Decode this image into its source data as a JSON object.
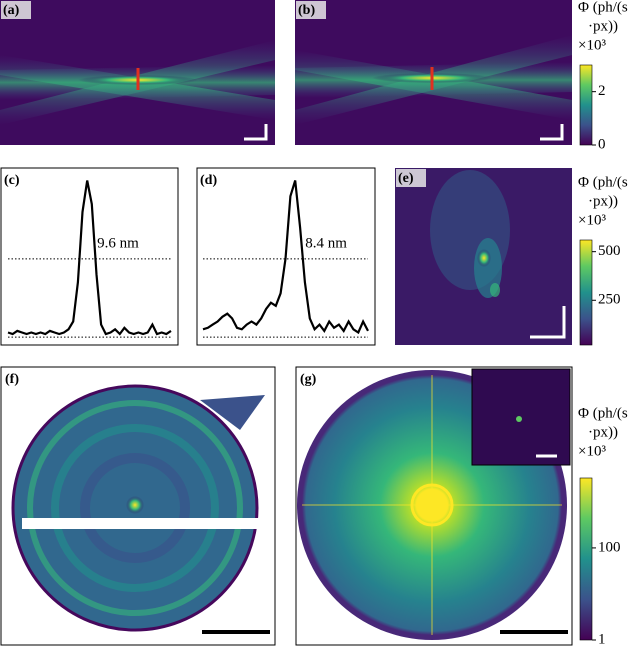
{
  "panels": [
    {
      "label": "(a)"
    },
    {
      "label": "(b)"
    },
    {
      "label": "(c)"
    },
    {
      "label": "(d)"
    },
    {
      "label": "(e)"
    },
    {
      "label": "(f)"
    },
    {
      "label": "(g)"
    }
  ],
  "colorbars": [
    {
      "title": [
        "Φ (ph/(s",
        "·px))",
        "×10³"
      ],
      "ylim": [
        0,
        3
      ],
      "yticks": [
        0,
        2
      ],
      "log": false
    },
    {
      "title": [
        "Φ (ph/(s",
        "·px))",
        "×10³"
      ],
      "ylim": [
        20,
        560
      ],
      "yticks": [
        250,
        500
      ],
      "log": false
    },
    {
      "title": [
        "Φ (ph/(s",
        "·px))",
        "×10³"
      ],
      "ylim": [
        1,
        3300
      ],
      "yticks": [
        1,
        100
      ],
      "log": true
    }
  ],
  "chart_data": [
    {
      "type": "line",
      "annotation": "9.6 nm",
      "color": "#000000",
      "ylim": [
        -0.05,
        1.08
      ],
      "values": [
        0.03,
        0.02,
        0.04,
        0.03,
        0.02,
        0.03,
        0.02,
        0.03,
        0.02,
        0.04,
        0.03,
        0.02,
        0.03,
        0.05,
        0.1,
        0.35,
        0.8,
        1.0,
        0.85,
        0.4,
        0.08,
        0.02,
        0.03,
        0.05,
        0.02,
        0.06,
        0.03,
        0.02,
        0.03,
        0.02,
        0.03,
        0.08,
        0.02,
        0.03,
        0.02,
        0.04
      ]
    },
    {
      "type": "line",
      "annotation": "8.4 nm",
      "color": "#000000",
      "ylim": [
        -0.05,
        1.08
      ],
      "values": [
        0.05,
        0.06,
        0.08,
        0.1,
        0.13,
        0.15,
        0.12,
        0.06,
        0.05,
        0.08,
        0.1,
        0.08,
        0.12,
        0.18,
        0.22,
        0.2,
        0.28,
        0.5,
        0.9,
        1.0,
        0.7,
        0.35,
        0.12,
        0.05,
        0.08,
        0.04,
        0.1,
        0.06,
        0.08,
        0.04,
        0.1,
        0.05,
        0.03,
        0.1,
        0.04
      ]
    }
  ]
}
